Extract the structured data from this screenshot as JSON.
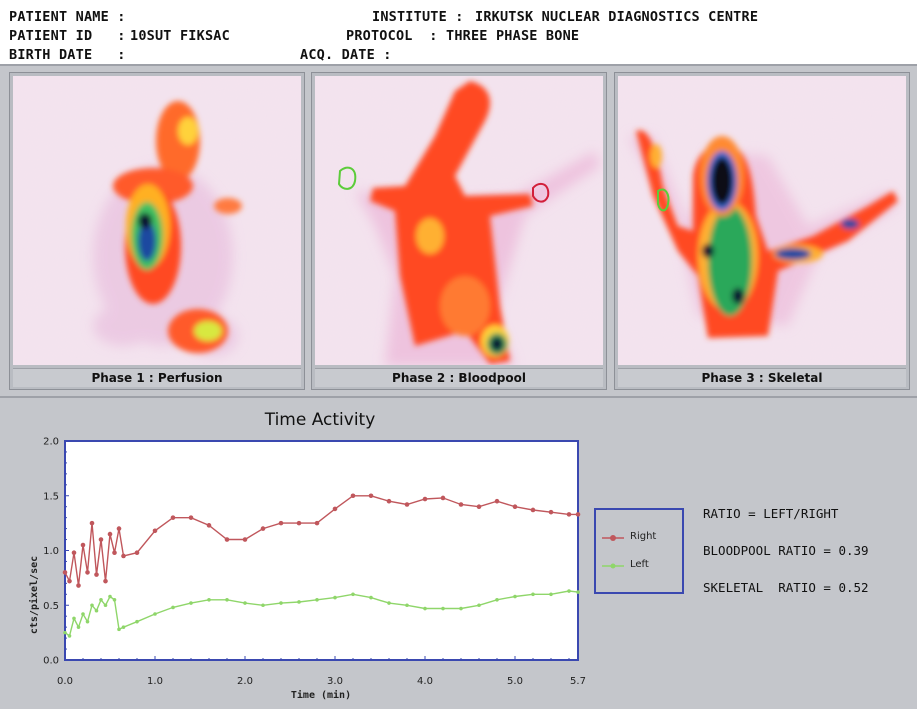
{
  "header": {
    "patient_name_label": "PATIENT NAME :",
    "patient_id_label": "PATIENT ID   :",
    "patient_id_value": "10SUT FIKSAC",
    "birth_date_label": "BIRTH DATE   :",
    "institute_label": "INSTITUTE :",
    "institute_value": "IRKUTSK NUCLEAR DIAGNOSTICS CENTRE",
    "protocol_label": "PROTOCOL  :",
    "protocol_value": "THREE PHASE BONE",
    "acq_date_label": "ACQ. DATE :"
  },
  "panels": [
    {
      "caption": "Phase 1 : Perfusion"
    },
    {
      "caption": "Phase 2 : Bloodpool"
    },
    {
      "caption": "Phase 3 : Skeletal"
    }
  ],
  "ratios": {
    "definition": "RATIO = LEFT/RIGHT",
    "bloodpool": "BLOODPOOL RATIO = 0.39",
    "skeletal": "SKELETAL  RATIO = 0.52"
  },
  "colors": {
    "right_series": "#c0575c",
    "left_series": "#8fd66a",
    "frame_blue": "#3a48b0"
  },
  "chart_data": {
    "type": "line",
    "title": "Time Activity",
    "xlabel": "Time (min)",
    "ylabel": "cts/pixel/sec",
    "xlim": [
      0.0,
      5.7
    ],
    "ylim": [
      0.0,
      2.0
    ],
    "xticks": [
      "0.0",
      "1.0",
      "2.0",
      "3.0",
      "4.0",
      "5.0",
      "5.7"
    ],
    "xtick_values": [
      0.0,
      1.0,
      2.0,
      3.0,
      4.0,
      5.0,
      5.7
    ],
    "yticks": [
      "0.0",
      "0.5",
      "1.0",
      "1.5",
      "2.0"
    ],
    "ytick_values": [
      0.0,
      0.5,
      1.0,
      1.5,
      2.0
    ],
    "legend": "right",
    "series": [
      {
        "name": "Right",
        "x": [
          0.0,
          0.05,
          0.1,
          0.15,
          0.2,
          0.25,
          0.3,
          0.35,
          0.4,
          0.45,
          0.5,
          0.55,
          0.6,
          0.65,
          0.8,
          1.0,
          1.2,
          1.4,
          1.6,
          1.8,
          2.0,
          2.2,
          2.4,
          2.6,
          2.8,
          3.0,
          3.2,
          3.4,
          3.6,
          3.8,
          4.0,
          4.2,
          4.4,
          4.6,
          4.8,
          5.0,
          5.2,
          5.4,
          5.6,
          5.7
        ],
        "values": [
          0.8,
          0.72,
          0.98,
          0.68,
          1.05,
          0.8,
          1.25,
          0.78,
          1.1,
          0.72,
          1.15,
          0.98,
          1.2,
          0.95,
          0.98,
          1.18,
          1.3,
          1.3,
          1.23,
          1.1,
          1.1,
          1.2,
          1.25,
          1.25,
          1.25,
          1.38,
          1.5,
          1.5,
          1.45,
          1.42,
          1.47,
          1.48,
          1.42,
          1.4,
          1.45,
          1.4,
          1.37,
          1.35,
          1.33,
          1.33
        ]
      },
      {
        "name": "Left",
        "x": [
          0.0,
          0.05,
          0.1,
          0.15,
          0.2,
          0.25,
          0.3,
          0.35,
          0.4,
          0.45,
          0.5,
          0.55,
          0.6,
          0.65,
          0.8,
          1.0,
          1.2,
          1.4,
          1.6,
          1.8,
          2.0,
          2.2,
          2.4,
          2.6,
          2.8,
          3.0,
          3.2,
          3.4,
          3.6,
          3.8,
          4.0,
          4.2,
          4.4,
          4.6,
          4.8,
          5.0,
          5.2,
          5.4,
          5.6,
          5.7
        ],
        "values": [
          0.25,
          0.22,
          0.38,
          0.3,
          0.42,
          0.35,
          0.5,
          0.45,
          0.55,
          0.5,
          0.58,
          0.55,
          0.28,
          0.3,
          0.35,
          0.42,
          0.48,
          0.52,
          0.55,
          0.55,
          0.52,
          0.5,
          0.52,
          0.53,
          0.55,
          0.57,
          0.6,
          0.57,
          0.52,
          0.5,
          0.47,
          0.47,
          0.47,
          0.5,
          0.55,
          0.58,
          0.6,
          0.6,
          0.63,
          0.62
        ]
      }
    ]
  }
}
